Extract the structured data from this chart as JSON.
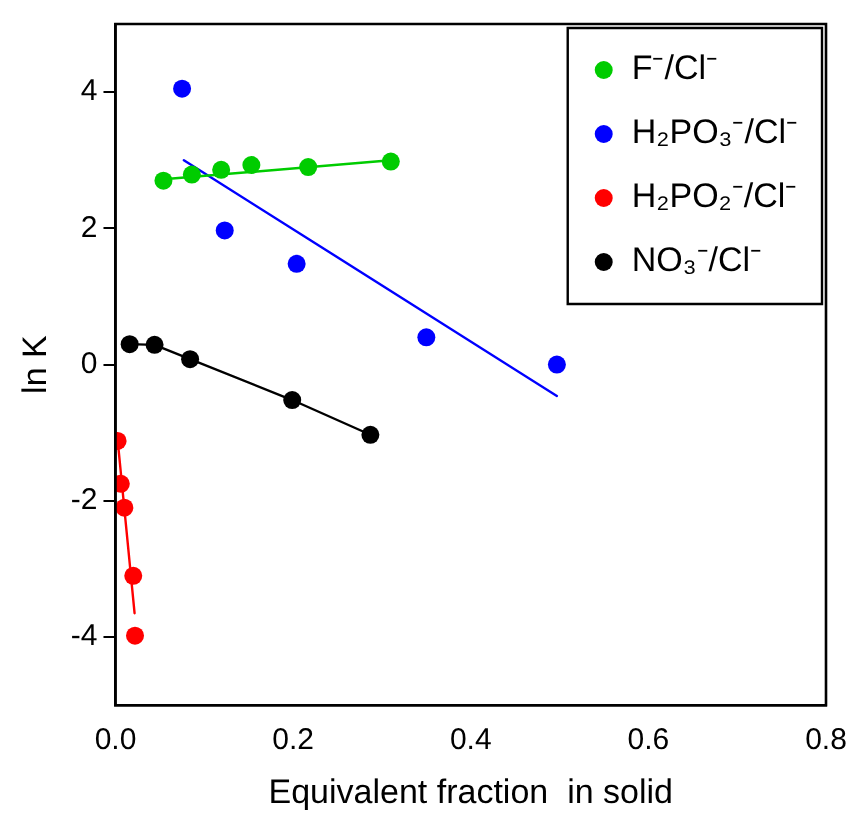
{
  "chart_data": {
    "type": "scatter",
    "xlabel": "Equivalent fraction  in solid",
    "ylabel": "ln K",
    "xlim": [
      0,
      0.8
    ],
    "xticks": [
      {
        "value": 0,
        "label": "0.0"
      },
      0.2,
      0.4,
      0.6,
      0.8
    ],
    "ylim": [
      -5,
      5
    ],
    "yticks": [
      -4,
      -2,
      0,
      2,
      4
    ],
    "grid": false,
    "legend": "top right",
    "marker": "circle",
    "series": [
      {
        "name": "F⁻/Cl⁻",
        "color": "#00cc00",
        "x": [
          0.054,
          0.086,
          0.119,
          0.153,
          0.217,
          0.31
        ],
        "values": [
          2.7,
          2.79,
          2.86,
          2.93,
          2.9,
          2.98
        ]
      },
      {
        "name": "H₂PO₃⁻/Cl⁻",
        "color": "#0000ff",
        "x": [
          0.075,
          0.123,
          0.204,
          0.35,
          0.497
        ],
        "values": [
          4.05,
          1.97,
          1.48,
          0.4,
          0.0
        ]
      },
      {
        "name": "H₂PO₂⁻/Cl⁻",
        "color": "#ff0000",
        "x": [
          0.0024,
          0.006,
          0.01,
          0.02,
          0.022
        ],
        "values": [
          -1.12,
          -1.75,
          -2.1,
          -3.1,
          -3.98
        ]
      },
      {
        "name": "NO₃⁻/Cl⁻",
        "color": "#000000",
        "type": "line",
        "x": [
          0.016,
          0.044,
          0.084,
          0.199,
          0.287
        ],
        "values": [
          0.3,
          0.29,
          0.08,
          -0.52,
          -1.03
        ]
      },
      {
        "type": "line",
        "color": "#00cc00",
        "marker": "none",
        "x": [
          0.054,
          0.31
        ],
        "values": [
          2.72,
          3.0
        ]
      },
      {
        "type": "line",
        "color": "#0000ff",
        "marker": "none",
        "x": [
          0.077,
          0.497
        ],
        "values": [
          3.0,
          -0.46
        ]
      },
      {
        "type": "line",
        "color": "#ff0000",
        "marker": "none",
        "x": [
          0.0024,
          0.0215
        ],
        "values": [
          -1.1,
          -3.65
        ]
      }
    ]
  }
}
